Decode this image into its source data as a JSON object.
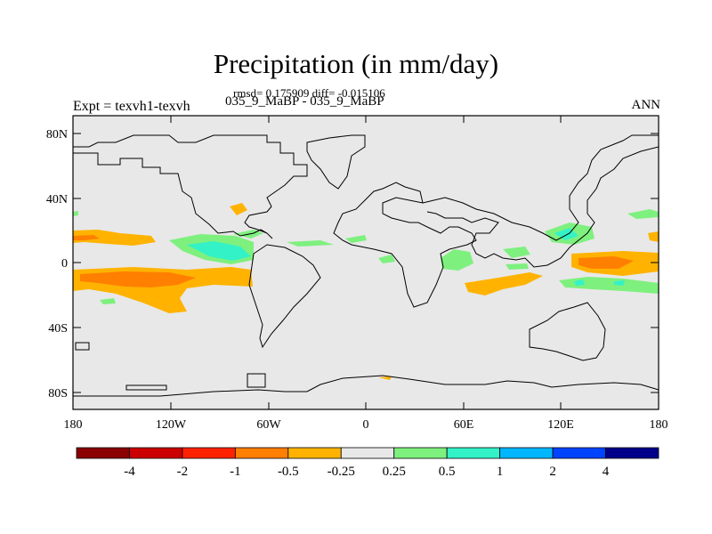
{
  "title": "Precipitation (in mm/day)",
  "stats": "rmsd= 0.175909 diff= -0.015106",
  "experiment": "035_9_MaBP - 035_9_MaBP",
  "left_label": "Expt = texvh1-texvh",
  "right_label": "ANN",
  "lat_ticks": [
    "80N",
    "40N",
    "0",
    "40S",
    "80S"
  ],
  "lon_ticks": [
    "180",
    "120W",
    "60W",
    "0",
    "60E",
    "120E",
    "180"
  ],
  "colorbar": {
    "colors": [
      "#8b0000",
      "#cc0000",
      "#ff2200",
      "#ff7f00",
      "#ffb300",
      "#e8e8e8",
      "#7ef07e",
      "#33f2c7",
      "#00b7ff",
      "#0044ff",
      "#00008b"
    ],
    "labels": [
      "-4",
      "-2",
      "-1",
      "-0.5",
      "-0.25",
      "0.25",
      "0.5",
      "1",
      "2",
      "4"
    ]
  },
  "background_color": "#e8e8e8"
}
